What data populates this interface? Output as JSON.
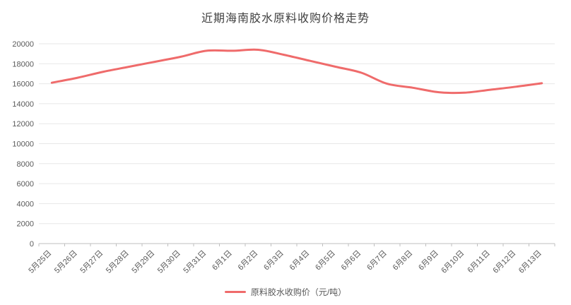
{
  "chart_data": {
    "type": "line",
    "title": "近期海南胶水原料收购价格走势",
    "legend": "原料胶水收购价（元/吨）",
    "categories": [
      "5月25日",
      "5月26日",
      "5月27日",
      "5月28日",
      "5月29日",
      "5月30日",
      "5月31日",
      "6月1日",
      "6月2日",
      "6月3日",
      "6月4日",
      "6月5日",
      "6月6日",
      "6月7日",
      "6月8日",
      "6月9日",
      "6月10日",
      "6月11日",
      "6月12日",
      "6月13日"
    ],
    "values": [
      16100,
      16600,
      17200,
      17700,
      18200,
      18700,
      19300,
      19300,
      19400,
      18900,
      18300,
      17700,
      17100,
      16000,
      15600,
      15150,
      15100,
      15400,
      15700,
      16050
    ],
    "xlabel": "",
    "ylabel": "",
    "ylim": [
      0,
      20000
    ],
    "ytick_step": 2000,
    "grid": true,
    "legend_position": "bottom",
    "line_color": "#ef6b6b",
    "grid_color": "#e7e7e7",
    "axis_line_color": "#bfbfbf",
    "axis_text_color": "#595959",
    "title_color": "#404040"
  }
}
